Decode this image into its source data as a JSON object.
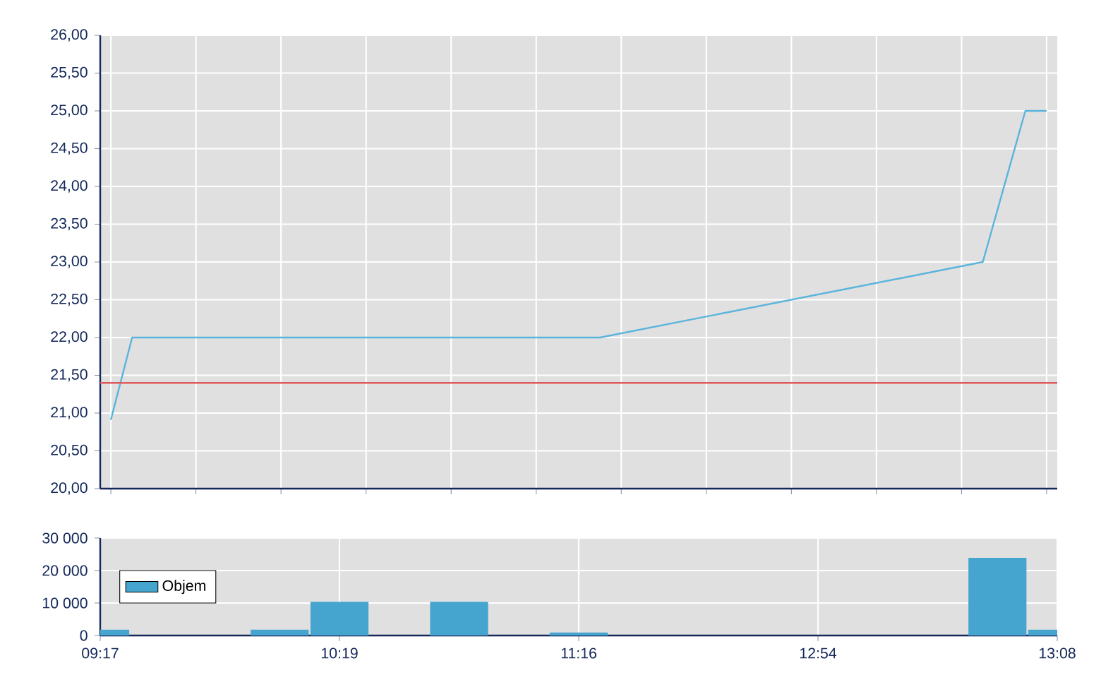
{
  "chart_data": [
    {
      "type": "line",
      "categories": [
        null,
        null,
        null,
        null,
        null,
        null,
        null,
        null,
        null,
        null,
        null,
        null,
        null,
        null,
        null,
        null,
        null,
        null,
        null,
        null,
        null,
        null,
        null,
        null,
        null,
        null,
        null,
        null,
        null,
        null,
        null,
        null,
        null,
        null,
        null,
        null,
        null,
        null,
        null,
        null,
        null,
        null,
        null,
        null,
        null
      ],
      "series": [
        {
          "color": "#5ab4dc",
          "values": [
            20.91,
            22.0,
            null,
            null,
            null,
            null,
            null,
            null,
            null,
            null,
            null,
            null,
            null,
            null,
            null,
            null,
            null,
            null,
            null,
            null,
            null,
            null,
            null,
            22.0,
            null,
            null,
            null,
            null,
            null,
            null,
            null,
            null,
            null,
            null,
            null,
            null,
            null,
            null,
            null,
            null,
            null,
            23.0,
            null,
            25.0,
            25.0
          ]
        }
      ],
      "ylim": [
        20,
        26
      ],
      "yticks": [
        {
          "value": 20,
          "label": "20,00"
        },
        {
          "value": 20.5,
          "label": "20,50"
        },
        {
          "value": 21,
          "label": "21,00"
        },
        {
          "value": 21.5,
          "label": "21,50"
        },
        {
          "value": 22,
          "label": "22,00"
        },
        {
          "value": 22.5,
          "label": "22,50"
        },
        {
          "value": 23,
          "label": "23,00"
        },
        {
          "value": 23.5,
          "label": "23,50"
        },
        {
          "value": 24,
          "label": "24,00"
        },
        {
          "value": 24.5,
          "label": "24,50"
        },
        {
          "value": 25,
          "label": "25,00"
        },
        {
          "value": 25.5,
          "label": "25,50"
        },
        {
          "value": 26,
          "label": "26,00"
        }
      ],
      "ref_lines": [
        {
          "axis": "y",
          "value": 21.4,
          "color": "#e05a5a"
        }
      ],
      "grid": true,
      "tick_labels": "y"
    },
    {
      "type": "bar",
      "categories": [
        "09:17",
        null,
        null,
        null,
        "10:19",
        null,
        null,
        null,
        "11:16",
        null,
        null,
        null,
        "12:54",
        null,
        null,
        null,
        "13:08"
      ],
      "series": [
        {
          "name": "Objem",
          "color": "#45a5cf",
          "values": [
            1800,
            null,
            null,
            1800,
            10400,
            null,
            10400,
            null,
            900,
            null,
            null,
            null,
            null,
            null,
            null,
            23900,
            1800
          ]
        }
      ],
      "ylim": [
        0,
        30000
      ],
      "yticks": [
        0,
        {
          "value": 10000,
          "label": "10 000"
        },
        {
          "value": 20000,
          "label": "20 000"
        },
        {
          "value": 30000,
          "label": "30 000"
        }
      ],
      "grid": true,
      "legend": "left"
    }
  ]
}
